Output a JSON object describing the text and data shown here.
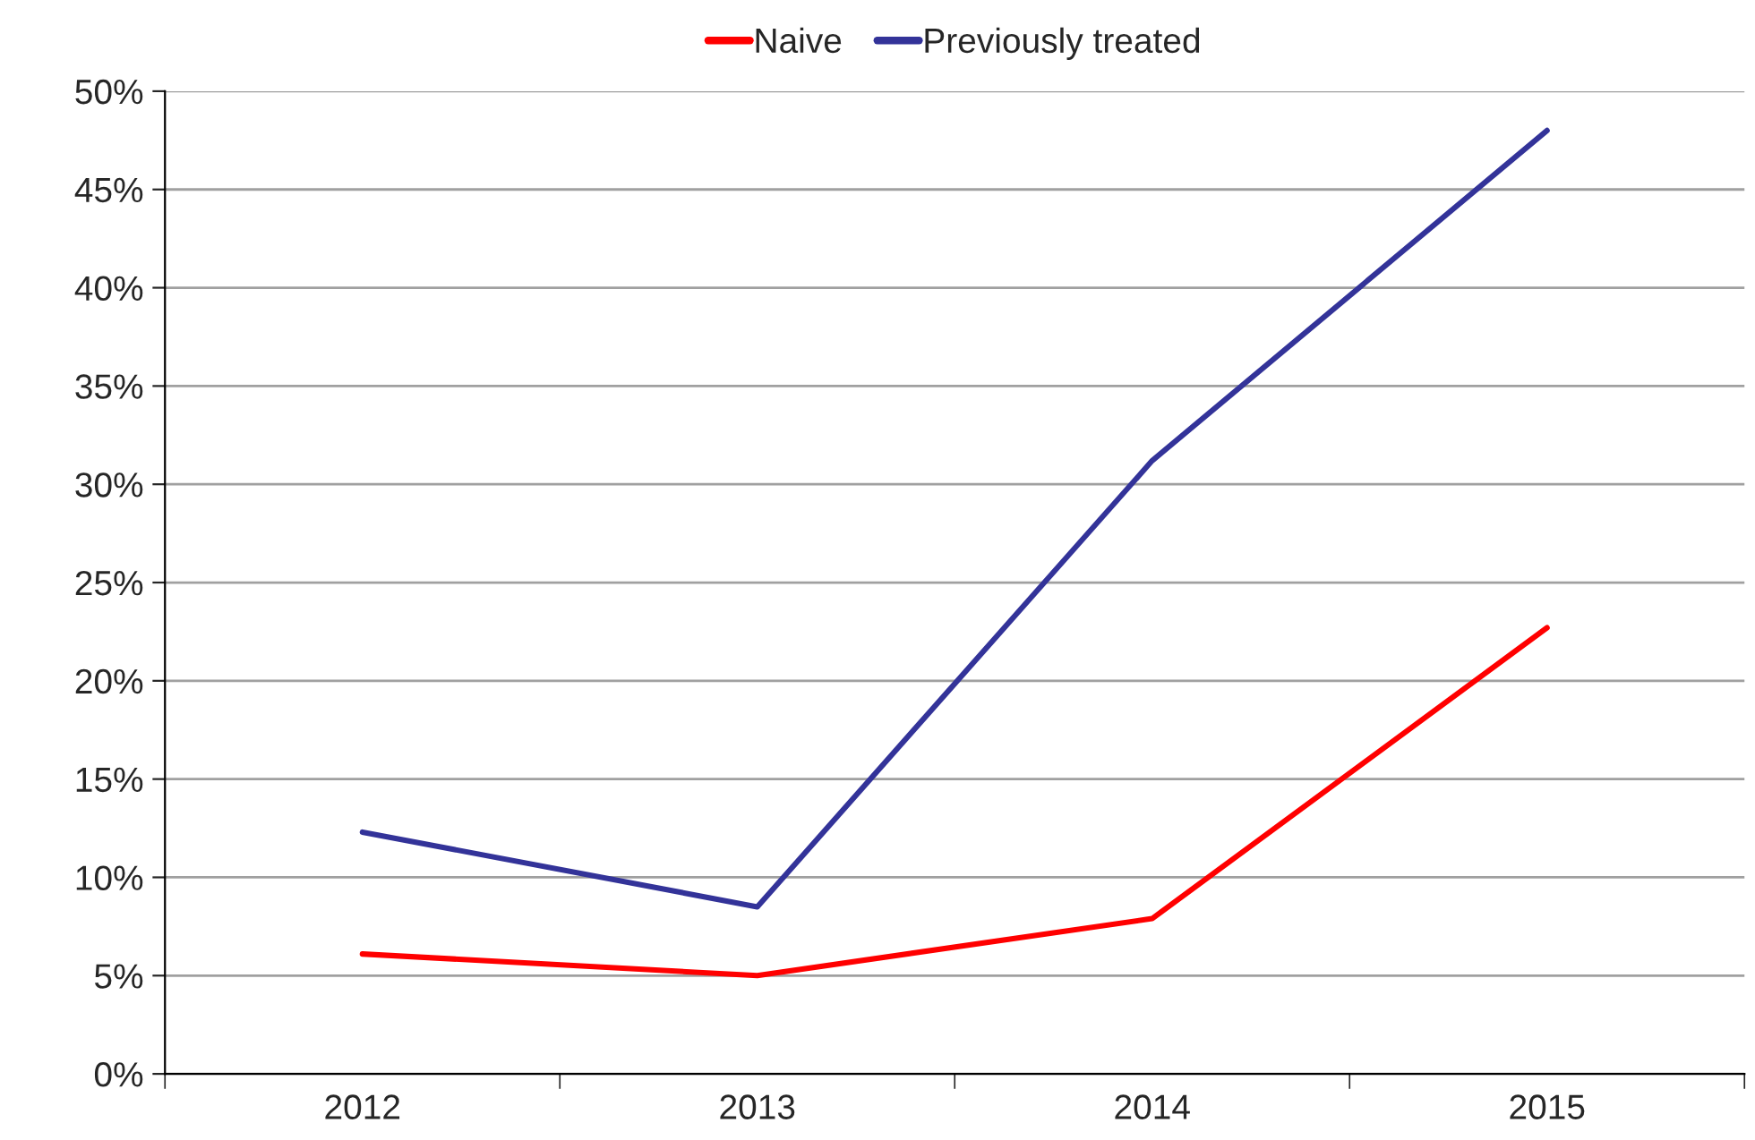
{
  "chart_data": {
    "type": "line",
    "categories": [
      "2012",
      "2013",
      "2014",
      "2015"
    ],
    "series": [
      {
        "name": "Naive",
        "color": "#ff0000",
        "values": [
          6.1,
          5.0,
          7.9,
          22.7
        ]
      },
      {
        "name": "Previously treated",
        "color": "#333399",
        "values": [
          12.3,
          8.5,
          31.2,
          48.0
        ]
      }
    ],
    "ylim": [
      0,
      50
    ],
    "yticks": [
      {
        "value": 0,
        "label": "0%"
      },
      {
        "value": 5,
        "label": "5%"
      },
      {
        "value": 10,
        "label": "10%"
      },
      {
        "value": 15,
        "label": "15%"
      },
      {
        "value": 20,
        "label": "20%"
      },
      {
        "value": 25,
        "label": "25%"
      },
      {
        "value": 30,
        "label": "30%"
      },
      {
        "value": 35,
        "label": "35%"
      },
      {
        "value": 40,
        "label": "40%"
      },
      {
        "value": 45,
        "label": "45%"
      },
      {
        "value": 50,
        "label": "50%"
      }
    ],
    "grid": "y",
    "legend": "top",
    "marker": "none",
    "line_style": "solid"
  }
}
